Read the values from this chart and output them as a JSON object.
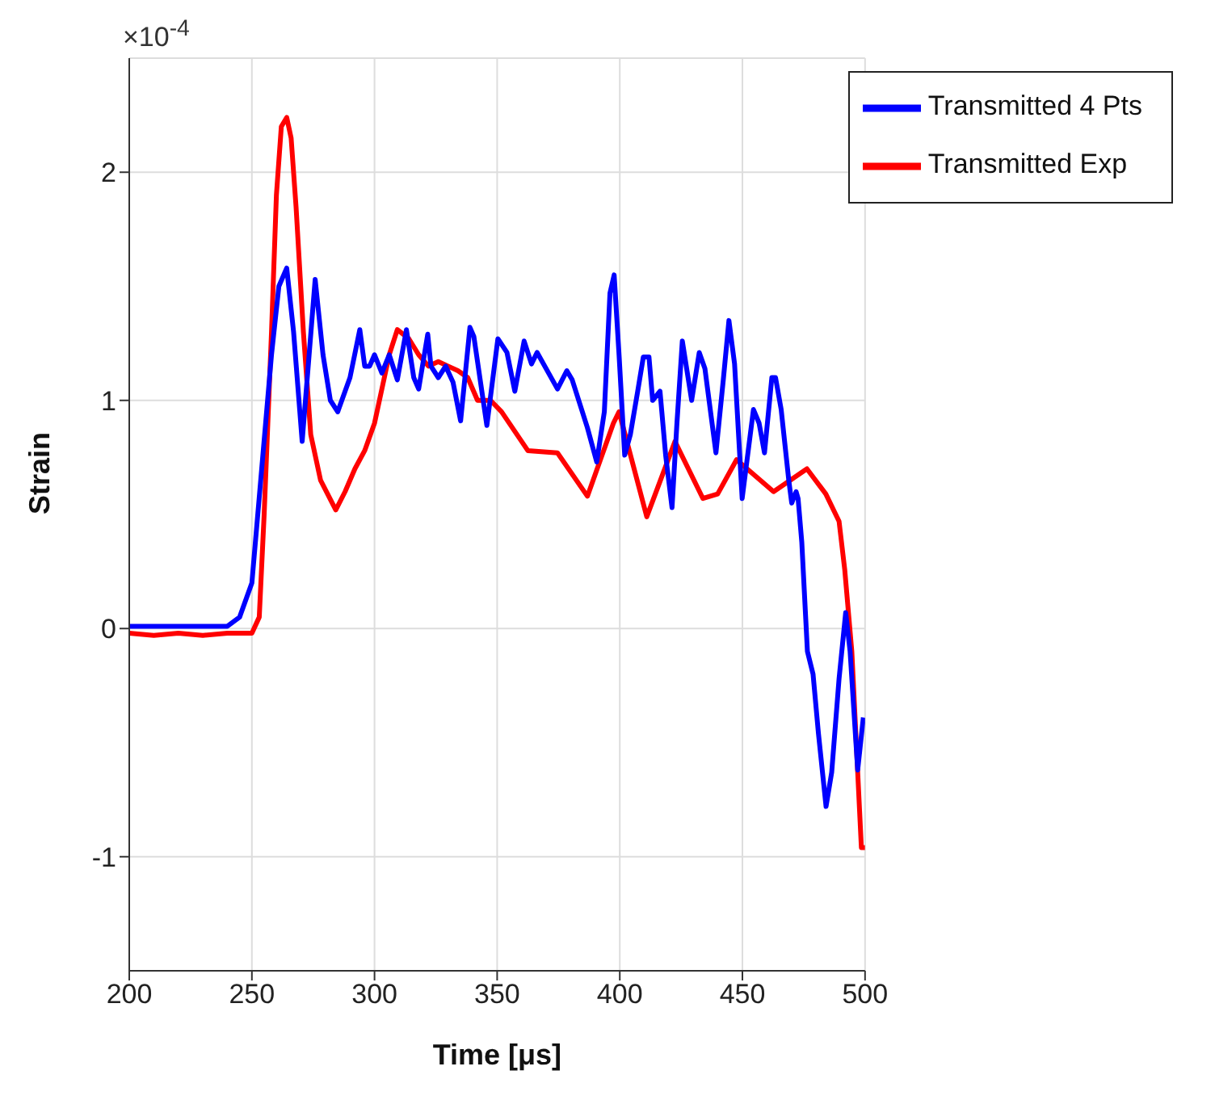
{
  "chart_data": {
    "type": "line",
    "xlabel": "Time [μs]",
    "ylabel": "Strain",
    "annotations": [
      "×10$^{-4}$"
    ],
    "xlim": [
      200,
      500
    ],
    "xticks": [
      200,
      250,
      300,
      350,
      400,
      450,
      500
    ],
    "ylim": [
      -1.5,
      2.5
    ],
    "yticks": [
      -1,
      0,
      1,
      2
    ],
    "grid": true,
    "legend": "top right",
    "line_style": "solid",
    "marker": "none",
    "series": [
      {
        "name": "Transmitted Exp",
        "color": "#ff0000",
        "x": [
          200,
          210,
          220,
          230,
          240,
          250,
          253,
          255,
          258,
          260,
          262,
          264.2,
          266,
          268,
          271,
          274,
          278,
          284.2,
          288,
          292,
          296,
          300,
          303,
          306,
          309.3,
          314,
          318,
          322,
          326,
          330,
          334,
          338,
          342,
          347.3,
          351.8,
          362.5,
          374.6,
          386.8,
          397.4,
          399.7,
          411,
          422.5,
          433.9,
          439.9,
          447.6,
          462.7,
          476.3,
          484,
          489.4,
          491.7,
          494.6,
          498.5,
          500
        ],
        "values": [
          -0.02,
          -0.03,
          -0.02,
          -0.03,
          -0.02,
          -0.02,
          0.05,
          0.5,
          1.3,
          1.9,
          2.2,
          2.24,
          2.15,
          1.85,
          1.3,
          0.85,
          0.65,
          0.52,
          0.6,
          0.7,
          0.78,
          0.9,
          1.05,
          1.2,
          1.31,
          1.27,
          1.2,
          1.15,
          1.17,
          1.15,
          1.13,
          1.1,
          1.0,
          1.0,
          0.95,
          0.78,
          0.77,
          0.58,
          0.9,
          0.95,
          0.49,
          0.82,
          0.57,
          0.59,
          0.74,
          0.6,
          0.7,
          0.59,
          0.47,
          0.26,
          -0.1,
          -0.96,
          -0.96
        ]
      },
      {
        "name": "Transmitted 4 Pts",
        "color": "#0000ff",
        "x": [
          200,
          220,
          240,
          245,
          250,
          254,
          258,
          261,
          264.2,
          267,
          270.5,
          275.8,
          279,
          282,
          285,
          290,
          294,
          296,
          298,
          300,
          303,
          306,
          309.3,
          313,
          316,
          318,
          321.7,
          323,
          326,
          329,
          332,
          335.1,
          338.9,
          340.5,
          345.8,
          350.3,
          354,
          357.2,
          361,
          364,
          366.3,
          374.6,
          378.4,
          380.6,
          386.8,
          390.6,
          393.7,
          396,
          397.7,
          399.7,
          402,
          404.3,
          407.3,
          409.6,
          411.9,
          413.4,
          416.4,
          418.7,
          421.3,
          423.3,
          425.5,
          429.3,
          432.4,
          434.7,
          439.2,
          442.2,
          444.5,
          446.8,
          449.9,
          454.5,
          456.8,
          459,
          462,
          463.5,
          465.8,
          468.9,
          470.1,
          471.9,
          472.7,
          474.2,
          476.5,
          478.8,
          481,
          484.1,
          486.4,
          489.4,
          492.1,
          493.9,
          497,
          499.3
        ],
        "values": [
          0.01,
          0.01,
          0.01,
          0.05,
          0.2,
          0.7,
          1.2,
          1.5,
          1.58,
          1.3,
          0.82,
          1.53,
          1.2,
          1.0,
          0.95,
          1.1,
          1.31,
          1.15,
          1.15,
          1.2,
          1.12,
          1.2,
          1.09,
          1.31,
          1.1,
          1.05,
          1.29,
          1.15,
          1.1,
          1.15,
          1.08,
          0.91,
          1.32,
          1.28,
          0.89,
          1.27,
          1.21,
          1.04,
          1.26,
          1.16,
          1.21,
          1.05,
          1.13,
          1.09,
          0.88,
          0.73,
          0.95,
          1.47,
          1.55,
          1.2,
          0.76,
          0.85,
          1.04,
          1.19,
          1.19,
          1.0,
          1.04,
          0.76,
          0.53,
          0.9,
          1.26,
          1.0,
          1.21,
          1.14,
          0.77,
          1.09,
          1.35,
          1.16,
          0.57,
          0.96,
          0.9,
          0.77,
          1.1,
          1.1,
          0.96,
          0.65,
          0.55,
          0.6,
          0.57,
          0.38,
          -0.1,
          -0.2,
          -0.46,
          -0.78,
          -0.63,
          -0.22,
          0.07,
          -0.1,
          -0.62,
          -0.39
        ]
      }
    ]
  }
}
